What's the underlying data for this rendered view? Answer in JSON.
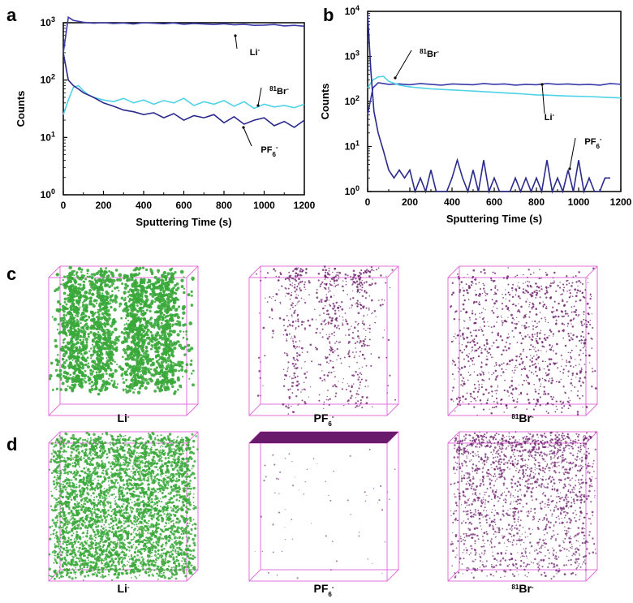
{
  "colors": {
    "li": "#3a3aa8",
    "br": "#4fd2e6",
    "pf6": "#2a2a8c",
    "green": "#3aa83a",
    "purple": "#6a1a6a",
    "cube": "#e070d8"
  },
  "chart_data": [
    {
      "panel": "a",
      "type": "line",
      "xlabel": "Sputtering Time (s)",
      "ylabel": "Counts",
      "xlim": [
        0,
        1200
      ],
      "ylim_log10": [
        0,
        3
      ],
      "xticks": [
        "0",
        "200",
        "400",
        "600",
        "800",
        "1000",
        "1200"
      ],
      "yticks": [
        "10^0",
        "10^1",
        "10^2",
        "10^3"
      ],
      "series": [
        {
          "name": "Li-",
          "label": "Li",
          "sup": "-",
          "x": [
            0,
            25,
            50,
            100,
            150,
            200,
            250,
            300,
            350,
            400,
            450,
            500,
            550,
            600,
            650,
            700,
            750,
            800,
            850,
            900,
            950,
            1000,
            1050,
            1100,
            1150,
            1200
          ],
          "values": [
            300,
            1250,
            1100,
            1020,
            980,
            1000,
            970,
            990,
            950,
            1000,
            980,
            960,
            990,
            940,
            970,
            950,
            930,
            960,
            920,
            940,
            900,
            910,
            930,
            880,
            900,
            870
          ]
        },
        {
          "name": "81Br-",
          "label": "Br",
          "presup": "81",
          "sup": "-",
          "x": [
            0,
            25,
            50,
            75,
            100,
            125,
            150,
            200,
            250,
            300,
            350,
            400,
            450,
            500,
            550,
            600,
            650,
            700,
            750,
            800,
            850,
            900,
            950,
            1000,
            1050,
            1100,
            1150,
            1200
          ],
          "values": [
            25,
            45,
            75,
            80,
            65,
            55,
            50,
            45,
            42,
            48,
            40,
            45,
            38,
            44,
            40,
            48,
            36,
            42,
            38,
            44,
            35,
            42,
            32,
            38,
            34,
            36,
            33,
            38
          ]
        },
        {
          "name": "PF6-",
          "label": "PF",
          "sub": "6",
          "sup": "-",
          "x": [
            0,
            25,
            50,
            75,
            100,
            125,
            150,
            200,
            250,
            300,
            350,
            400,
            450,
            500,
            550,
            600,
            650,
            700,
            750,
            800,
            850,
            900,
            950,
            1000,
            1050,
            1100,
            1150,
            1200
          ],
          "values": [
            300,
            100,
            80,
            70,
            60,
            55,
            50,
            40,
            35,
            30,
            28,
            25,
            27,
            22,
            26,
            20,
            24,
            22,
            25,
            18,
            23,
            17,
            20,
            22,
            16,
            19,
            15,
            20
          ]
        }
      ],
      "annotations": [
        "Li-",
        "81Br-",
        "PF6-"
      ]
    },
    {
      "panel": "b",
      "type": "line",
      "xlabel": "Sputtering Time (s)",
      "ylabel": "Counts",
      "xlim": [
        0,
        1200
      ],
      "ylim_log10": [
        0,
        4
      ],
      "xticks": [
        "0",
        "200",
        "400",
        "600",
        "800",
        "1000",
        "1200"
      ],
      "yticks": [
        "10^0",
        "10^1",
        "10^2",
        "10^3",
        "10^4"
      ],
      "series": [
        {
          "name": "Li-",
          "label": "Li",
          "sup": "-",
          "x": [
            0,
            25,
            50,
            75,
            100,
            150,
            200,
            250,
            300,
            350,
            400,
            450,
            500,
            550,
            600,
            650,
            700,
            750,
            800,
            850,
            900,
            950,
            1000,
            1050,
            1100,
            1150,
            1200
          ],
          "values": [
            50,
            200,
            260,
            250,
            240,
            245,
            235,
            250,
            240,
            230,
            245,
            240,
            235,
            250,
            240,
            245,
            230,
            240,
            235,
            250,
            240,
            245,
            235,
            240,
            230,
            250,
            240
          ]
        },
        {
          "name": "81Br-",
          "label": "Br",
          "presup": "81",
          "sup": "-",
          "x": [
            0,
            25,
            50,
            75,
            100,
            150,
            200,
            250,
            300,
            350,
            400,
            450,
            500,
            550,
            600,
            650,
            700,
            750,
            800,
            850,
            900,
            950,
            1000,
            1050,
            1100,
            1150,
            1200
          ],
          "values": [
            200,
            300,
            350,
            360,
            280,
            230,
            210,
            200,
            190,
            185,
            180,
            175,
            170,
            165,
            160,
            155,
            150,
            145,
            140,
            138,
            135,
            132,
            130,
            128,
            125,
            122,
            120
          ]
        },
        {
          "name": "PF6-",
          "label": "PF",
          "sub": "6",
          "sup": "-",
          "x": [
            0,
            15,
            30,
            50,
            75,
            100,
            125,
            150,
            175,
            200,
            225,
            250,
            275,
            300,
            325,
            350,
            375,
            400,
            425,
            450,
            475,
            500,
            525,
            550,
            575,
            600,
            625,
            650,
            675,
            700,
            725,
            750,
            775,
            800,
            825,
            850,
            875,
            900,
            925,
            950,
            975,
            1000,
            1025,
            1050,
            1075,
            1100,
            1125,
            1150
          ],
          "values": [
            9000,
            500,
            60,
            20,
            8,
            3,
            2,
            3,
            2,
            3,
            1,
            2,
            1,
            3,
            1,
            1,
            1,
            2,
            5,
            2,
            1,
            3,
            1,
            5,
            1,
            2,
            1,
            1,
            1,
            2,
            1,
            2,
            1,
            2,
            1,
            5,
            1,
            2,
            1,
            3,
            1,
            5,
            1,
            2,
            1,
            1,
            2,
            2
          ]
        }
      ],
      "annotations": [
        "81Br-",
        "Li-",
        "PF6-"
      ]
    }
  ],
  "panel_labels": {
    "a": "a",
    "b": "b",
    "c": "c",
    "d": "d"
  },
  "cubes": {
    "row_c": [
      {
        "ion": "Li-",
        "label": "Li",
        "sup": "-",
        "color": "green"
      },
      {
        "ion": "PF6-",
        "label": "PF",
        "sub": "6",
        "sup": "-",
        "color": "purple"
      },
      {
        "ion": "81Br-",
        "label": "Br",
        "presup": "81",
        "sup": "-",
        "color": "purple"
      }
    ],
    "row_d": [
      {
        "ion": "Li-",
        "label": "Li",
        "sup": "-",
        "color": "green"
      },
      {
        "ion": "PF6-",
        "label": "PF",
        "sub": "6",
        "sup": "-",
        "color": "purple"
      },
      {
        "ion": "81Br-",
        "label": "Br",
        "presup": "81",
        "sup": "-",
        "color": "purple"
      }
    ]
  }
}
